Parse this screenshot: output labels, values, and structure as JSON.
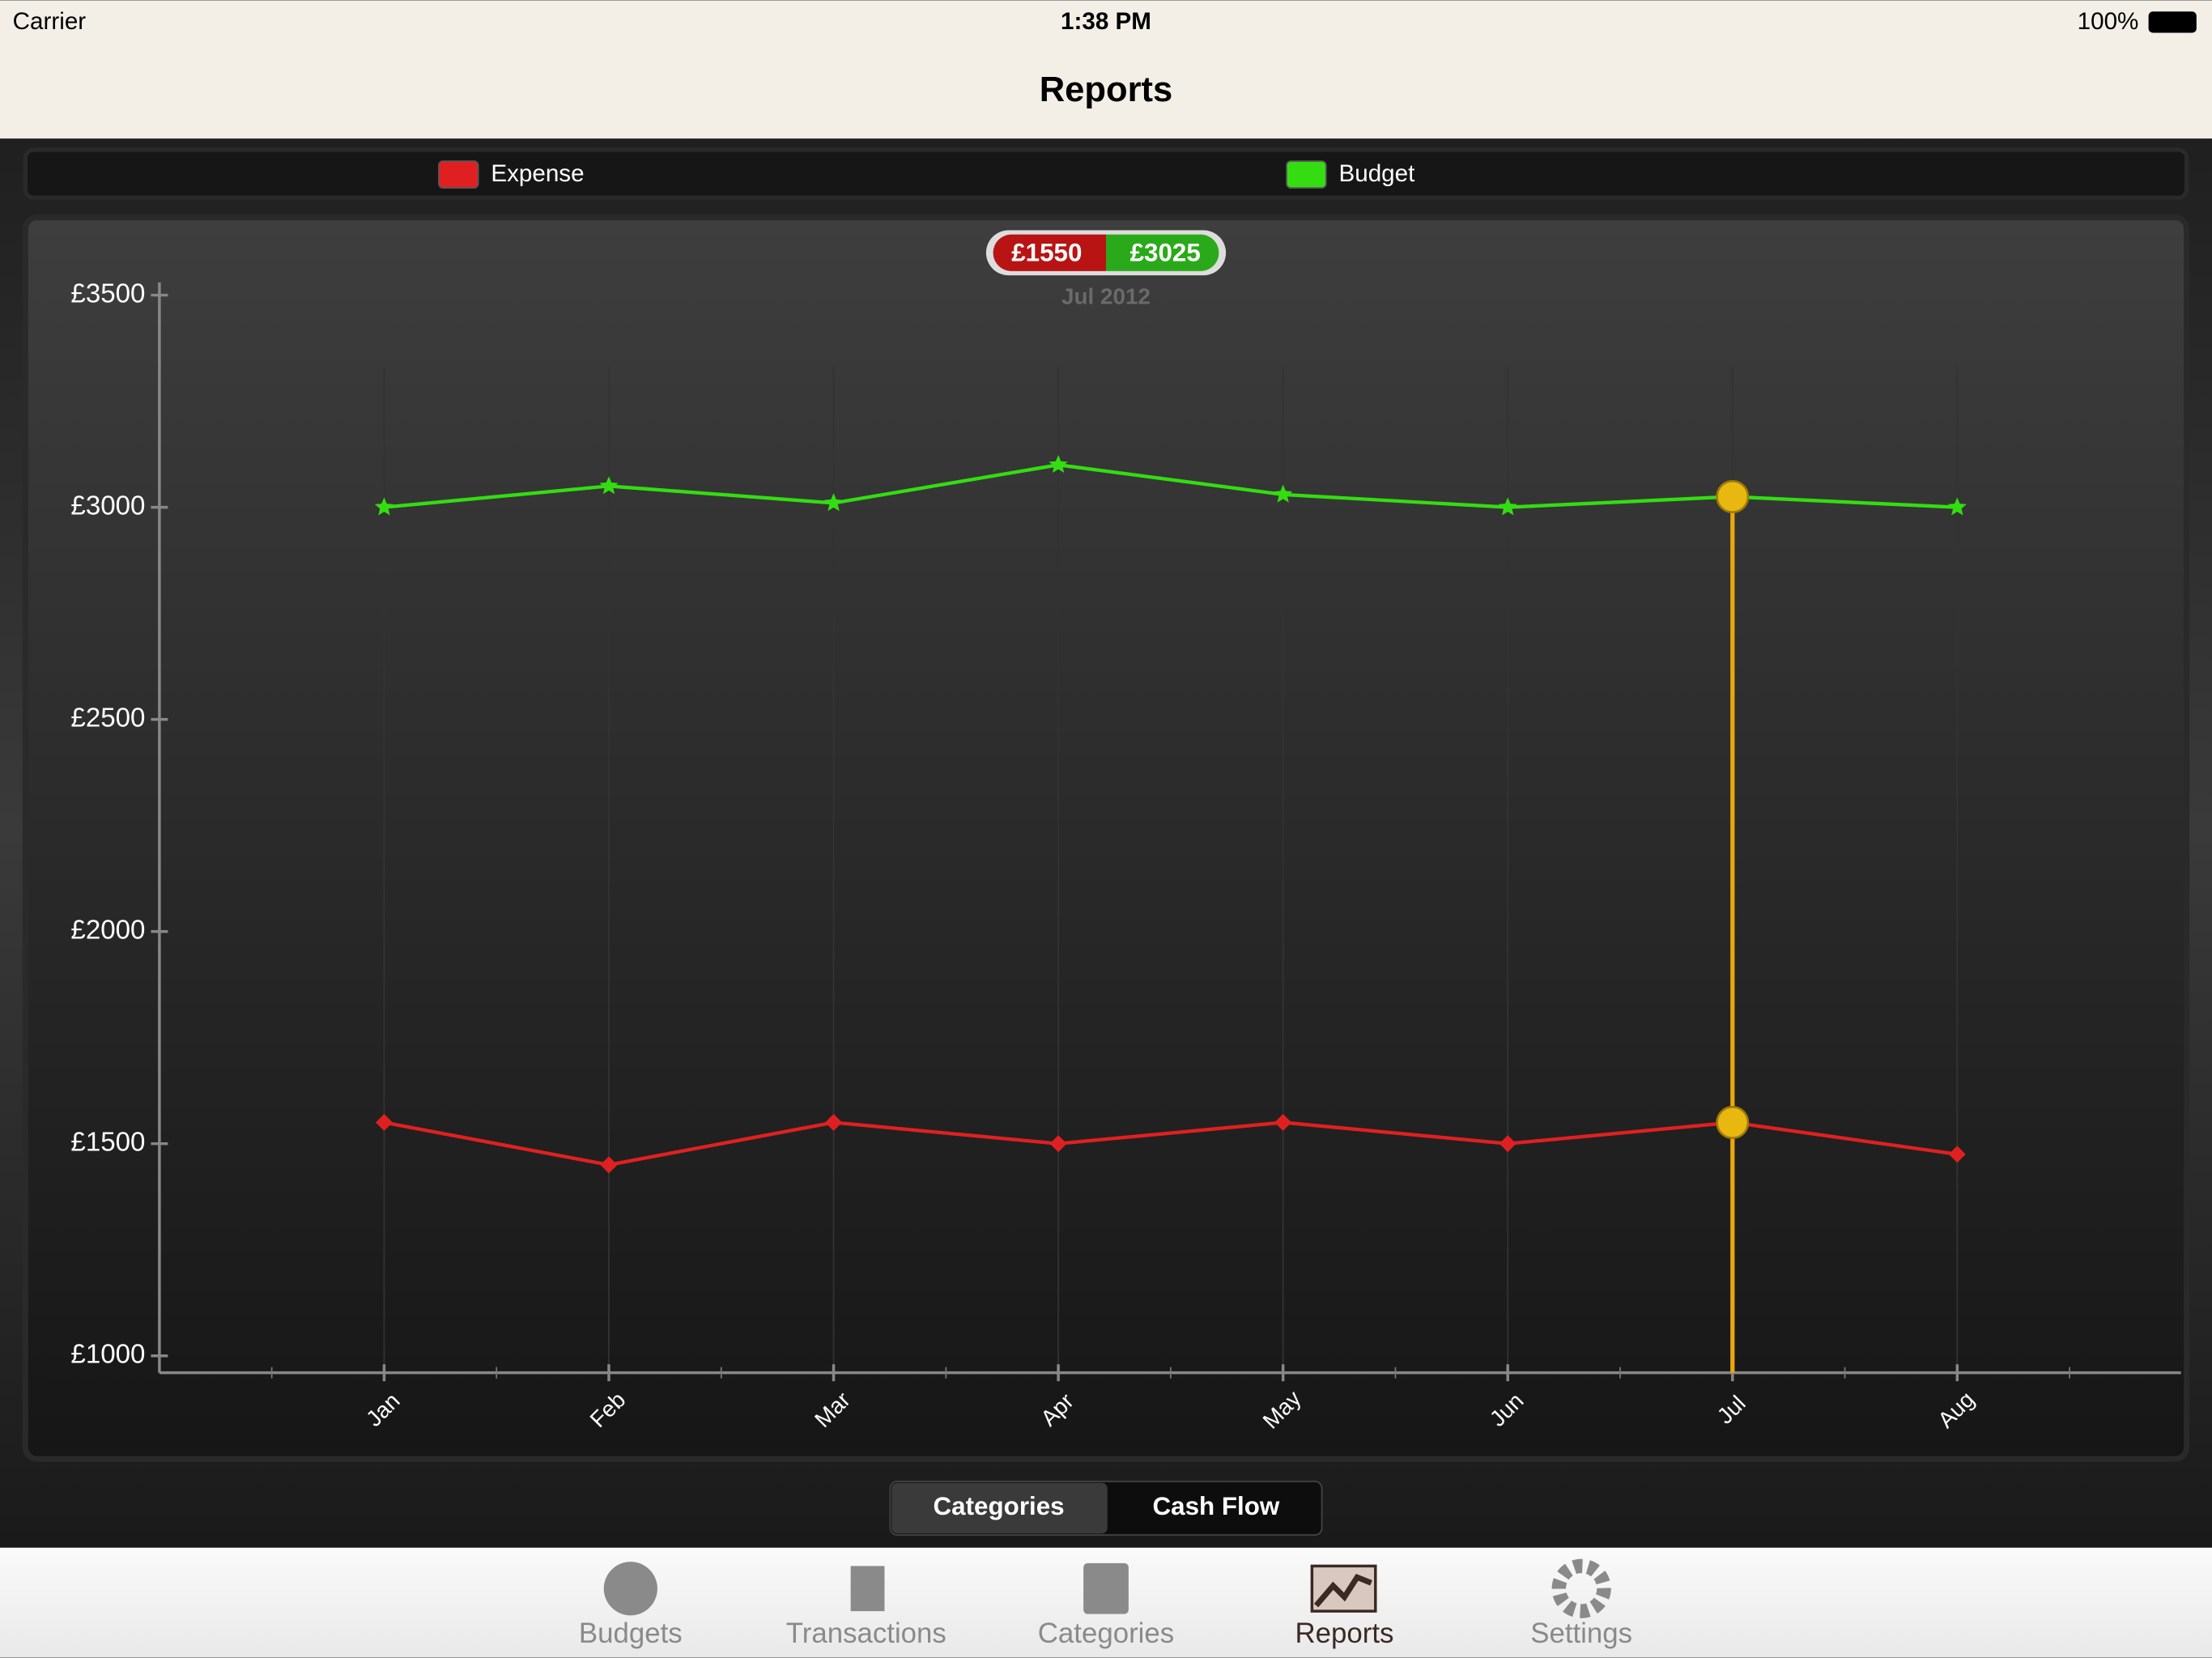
{
  "status_bar": {
    "carrier": "Carrier",
    "time": "1:38 PM",
    "battery": "100%"
  },
  "nav_title": "Reports",
  "chart_data": {
    "type": "line",
    "categories": [
      "Jan",
      "Feb",
      "Mar",
      "Apr",
      "May",
      "Jun",
      "Jul",
      "Aug"
    ],
    "series": [
      {
        "name": "Expense",
        "color": "#e02020",
        "values": [
          1550,
          1450,
          1550,
          1500,
          1550,
          1500,
          1550,
          1475
        ]
      },
      {
        "name": "Budget",
        "color": "#33dd11",
        "values": [
          3000,
          3050,
          3010,
          3100,
          3030,
          3000,
          3025,
          3000
        ]
      }
    ],
    "ylim": [
      960,
      3530
    ],
    "yticks": [
      {
        "value": 1000,
        "label": "£1000"
      },
      {
        "value": 1500,
        "label": "£1500"
      },
      {
        "value": 2000,
        "label": "£2000"
      },
      {
        "value": 2500,
        "label": "£2500"
      },
      {
        "value": 3000,
        "label": "£3000"
      },
      {
        "value": 3500,
        "label": "£3500"
      }
    ],
    "selected": 6,
    "tooltip": {
      "expense_label": "£1550",
      "budget_label": "£3025",
      "period": "Jul 2012"
    }
  },
  "segments": [
    "Categories",
    "Cash Flow"
  ],
  "tabs": [
    "Budgets",
    "Transactions",
    "Categories",
    "Reports",
    "Settings"
  ]
}
